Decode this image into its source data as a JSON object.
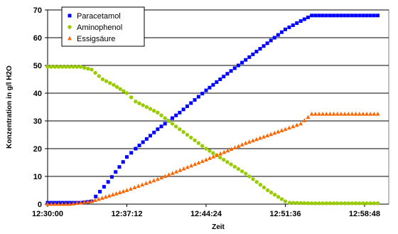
{
  "chart_data": {
    "type": "scatter",
    "xlabel": "Zeit",
    "ylabel": "Konzentration in g/l H2O",
    "xlim": [
      "12:30:00",
      "13:01:00"
    ],
    "ylim": [
      0,
      70
    ],
    "y_ticks": [
      0,
      10,
      20,
      30,
      40,
      50,
      60,
      70
    ],
    "x_ticks": [
      "12:30:00",
      "12:37:12",
      "12:44:24",
      "12:51:36",
      "12:58:48"
    ],
    "grid": "horizontal",
    "legend_position": "top-left",
    "series": [
      {
        "name": "Paracetamol",
        "color": "#0000ff",
        "marker": "square",
        "x": [
          "12:30:00",
          "12:32:00",
          "12:33:00",
          "12:34:00",
          "12:35:30",
          "12:37:12",
          "12:38:00",
          "12:40:00",
          "12:42:00",
          "12:44:24",
          "12:46:00",
          "12:48:00",
          "12:51:36",
          "12:53:00",
          "12:54:00",
          "12:56:00",
          "12:58:00",
          "13:00:00"
        ],
        "values": [
          0.5,
          0.5,
          0.5,
          1,
          8,
          17,
          20,
          27,
          33,
          41,
          46,
          52,
          63,
          66,
          68,
          68,
          68,
          68
        ]
      },
      {
        "name": "Aminophenol",
        "color": "#99cc00",
        "marker": "circle",
        "x": [
          "12:30:00",
          "12:32:00",
          "12:33:00",
          "12:34:00",
          "12:35:00",
          "12:36:00",
          "12:37:12",
          "12:38:00",
          "12:40:00",
          "12:42:00",
          "12:44:24",
          "12:46:00",
          "12:48:00",
          "12:50:00",
          "12:51:36",
          "12:52:00",
          "12:54:00",
          "12:56:00",
          "12:58:00",
          "13:00:00"
        ],
        "values": [
          49.5,
          49.5,
          49.5,
          48.5,
          45,
          43,
          40,
          37,
          33,
          27,
          20,
          16,
          11,
          5,
          1,
          0.5,
          0.3,
          0.3,
          0.3,
          0.3
        ]
      },
      {
        "name": "Essigsäure",
        "color": "#ff6600",
        "marker": "triangle",
        "x": [
          "12:30:00",
          "12:32:00",
          "12:33:00",
          "12:34:00",
          "12:37:12",
          "12:40:00",
          "12:44:24",
          "12:48:00",
          "12:51:36",
          "12:53:00",
          "12:54:00",
          "12:56:00",
          "12:58:00",
          "13:00:00"
        ],
        "values": [
          0,
          0,
          0.5,
          1,
          5,
          9,
          16,
          22,
          27,
          29,
          32.5,
          32.5,
          32.5,
          32.5
        ]
      }
    ]
  }
}
